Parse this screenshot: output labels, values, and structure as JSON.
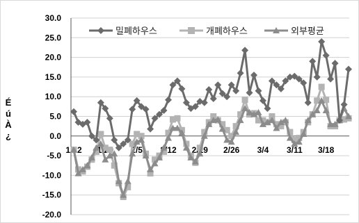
{
  "chart_data": {
    "type": "line",
    "ylabel": "É\nú\nÀ\n¿",
    "ylim": [
      -20,
      30
    ],
    "yticks": [
      "-20.0",
      "-15.0",
      "-10.0",
      "-5.0",
      "0.0",
      "5.0",
      "10.0",
      "15.0",
      "20.0",
      "25.0",
      "30.0"
    ],
    "xtick_labels": [
      "1/22",
      "1/29",
      "2/5",
      "2/12",
      "2/19",
      "2/26",
      "3/4",
      "3/11",
      "3/18"
    ],
    "legend_position": "top",
    "series": [
      {
        "name": "밀폐하우스",
        "color": "#6b6b6b",
        "marker": "diamond",
        "values": [
          6.2,
          3.5,
          3.0,
          3.5,
          0.0,
          -1.0,
          8.5,
          7.0,
          4.5,
          -1.0,
          -3.0,
          -2.0,
          -1.0,
          6.8,
          9.0,
          7.5,
          6.8,
          1.8,
          4.5,
          5.5,
          6.5,
          9.2,
          13.0,
          14.0,
          12.0,
          8.5,
          7.0,
          7.5,
          8.8,
          8.5,
          11.8,
          9.5,
          13.0,
          10.8,
          10.0,
          13.0,
          11.5,
          16.0,
          21.8,
          11.0,
          15.5,
          11.5,
          9.0,
          7.0,
          14.0,
          13.0,
          12.0,
          14.0,
          15.0,
          15.2,
          14.5,
          13.5,
          8.5,
          19.0,
          15.0,
          24.0,
          20.5,
          14.5,
          18.5,
          4.0,
          8.0,
          17.0
        ]
      },
      {
        "name": "개폐하우스",
        "color": "#b3b3b3",
        "marker": "square",
        "values": [
          -3.5,
          -8.5,
          -9.0,
          -7.8,
          -6.0,
          -4.0,
          0.5,
          -3.0,
          -3.5,
          -7.5,
          -12.0,
          -15.5,
          -13.0,
          -2.0,
          0.5,
          0.0,
          -4.5,
          -9.5,
          -6.0,
          -5.0,
          -4.0,
          0.8,
          4.2,
          4.5,
          1.5,
          -2.0,
          -5.0,
          -6.8,
          -3.0,
          1.0,
          3.5,
          5.0,
          4.0,
          3.0,
          1.5,
          0.0,
          2.5,
          5.5,
          9.2,
          5.5,
          5.8,
          4.0,
          4.0,
          3.5,
          5.0,
          3.0,
          2.5,
          3.5,
          1.0,
          -1.0,
          -0.5,
          1.0,
          3.5,
          5.5,
          9.0,
          12.5,
          9.2,
          2.5,
          2.5,
          4.0,
          4.2,
          4.5
        ]
      },
      {
        "name": "외부평균",
        "color": "#8c8c8c",
        "marker": "triangle",
        "values": [
          -3.5,
          -9.5,
          -8.5,
          -7.5,
          -5.5,
          -3.0,
          -2.0,
          -6.0,
          -5.0,
          -4.5,
          -11.5,
          -15.0,
          -11.5,
          -4.5,
          -1.5,
          -1.0,
          -5.0,
          -8.5,
          -7.0,
          -5.5,
          -3.0,
          -0.5,
          2.0,
          2.0,
          0.8,
          -3.0,
          -5.5,
          -6.5,
          -4.5,
          0.0,
          3.0,
          4.0,
          4.2,
          1.8,
          -1.0,
          -1.5,
          1.0,
          4.0,
          7.0,
          6.0,
          5.5,
          6.0,
          3.0,
          3.5,
          4.0,
          2.0,
          3.5,
          4.0,
          -0.5,
          -2.0,
          -1.5,
          0.5,
          4.0,
          5.5,
          6.5,
          9.0,
          6.5,
          3.0,
          3.0,
          4.0,
          7.0,
          5.0
        ]
      }
    ]
  }
}
